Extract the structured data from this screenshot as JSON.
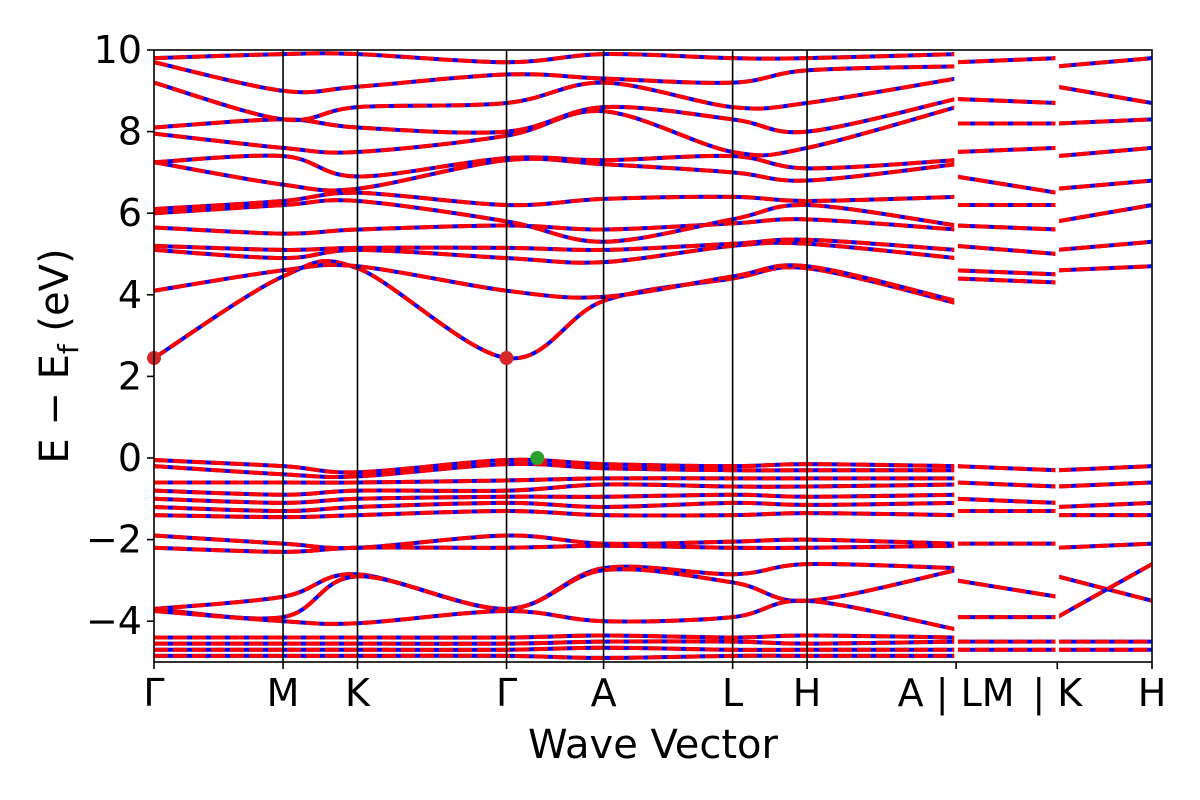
{
  "chart_data": {
    "type": "line",
    "xlabel": "Wave Vector",
    "ylabel_main": "E − E",
    "ylabel_sub": "f",
    "ylabel_unit": " (eV)",
    "ylim": [
      -5,
      10
    ],
    "yticks": [
      10,
      8,
      6,
      4,
      2,
      0,
      -2,
      -4
    ],
    "ytick_labels": [
      "10",
      "8",
      "6",
      "4",
      "2",
      "0",
      "−2",
      "−4"
    ],
    "kpoint_labels": [
      "Γ",
      "M",
      "K",
      "Γ",
      "A",
      "L",
      "H",
      "A | LM",
      "| K",
      "H"
    ],
    "kpoint_positions": [
      0.0,
      1.0,
      1.577,
      2.732,
      3.484,
      4.484,
      5.061,
      6.216,
      7.0,
      7.734
    ],
    "path_breaks": [
      6.216,
      7.0
    ],
    "xlim": [
      0.0,
      7.734
    ],
    "series_colors": {
      "spin_up": "#ff0000",
      "spin_down": "#0000ff"
    },
    "marker_colors": {
      "cbm": "#d62728",
      "vbm": "#2ca02c"
    },
    "cbm_points": [
      {
        "k": 0.0,
        "E": 2.45
      },
      {
        "k": 2.732,
        "E": 2.45
      }
    ],
    "vbm_points": [
      {
        "k": 2.97,
        "E": 0.0
      }
    ],
    "bands": [
      {
        "k": [
          0,
          1,
          1.577,
          2.732,
          3.484,
          4.484,
          5.061,
          6.216
        ],
        "E": [
          2.45,
          4.45,
          4.65,
          2.45,
          3.85,
          4.4,
          4.65,
          3.8
        ]
      },
      {
        "k": [
          0,
          1,
          1.577,
          2.732,
          3.484,
          4.484,
          5.061,
          6.216
        ],
        "E": [
          4.1,
          4.6,
          4.7,
          4.1,
          3.95,
          4.45,
          4.7,
          3.85
        ]
      },
      {
        "k": [
          0,
          1,
          1.577,
          2.732,
          3.484,
          4.484,
          5.061,
          6.216
        ],
        "E": [
          5.1,
          4.9,
          5.1,
          4.9,
          4.8,
          5.2,
          5.25,
          4.9
        ]
      },
      {
        "k": [
          0,
          1,
          1.577,
          2.732,
          3.484,
          4.484,
          5.061,
          6.216
        ],
        "E": [
          5.2,
          5.1,
          5.15,
          5.15,
          5.1,
          5.25,
          5.35,
          5.1
        ]
      },
      {
        "k": [
          0,
          1,
          1.577,
          2.732,
          3.484,
          4.484,
          5.061,
          6.216
        ],
        "E": [
          5.65,
          5.5,
          5.6,
          5.7,
          5.6,
          5.75,
          5.85,
          5.6
        ]
      },
      {
        "k": [
          0,
          1,
          1.577,
          2.732,
          3.484,
          4.484,
          5.061,
          6.216
        ],
        "E": [
          6.0,
          6.2,
          6.3,
          5.8,
          5.3,
          5.85,
          6.2,
          5.7
        ]
      },
      {
        "k": [
          0,
          1,
          1.577,
          2.732,
          3.484,
          4.484,
          5.061,
          6.216
        ],
        "E": [
          6.1,
          6.3,
          6.5,
          6.2,
          6.35,
          6.4,
          6.3,
          6.4
        ]
      },
      {
        "k": [
          0,
          1,
          1.577,
          2.732,
          3.484,
          4.484,
          5.061,
          6.216
        ],
        "E": [
          7.25,
          6.7,
          6.6,
          7.3,
          7.2,
          7.0,
          6.8,
          7.2
        ]
      },
      {
        "k": [
          0,
          1,
          1.577,
          2.732,
          3.484,
          4.484,
          5.061,
          6.216
        ],
        "E": [
          7.25,
          7.4,
          6.9,
          7.35,
          7.3,
          7.4,
          7.1,
          7.3
        ]
      },
      {
        "k": [
          0,
          1,
          1.577,
          2.732,
          3.484,
          4.484,
          5.061,
          6.216
        ],
        "E": [
          7.95,
          7.6,
          7.5,
          7.9,
          8.5,
          7.5,
          7.6,
          8.6
        ]
      },
      {
        "k": [
          0,
          1,
          1.577,
          2.732,
          3.484,
          4.484,
          5.061,
          6.216
        ],
        "E": [
          8.1,
          8.3,
          8.1,
          8.0,
          8.6,
          8.3,
          8.0,
          8.8
        ]
      },
      {
        "k": [
          0,
          1,
          1.577,
          2.732,
          3.484,
          4.484,
          5.061,
          6.216
        ],
        "E": [
          9.2,
          8.3,
          8.6,
          8.7,
          9.2,
          8.6,
          8.7,
          9.3
        ]
      },
      {
        "k": [
          0,
          1,
          1.577,
          2.732,
          3.484,
          4.484,
          5.061,
          6.216
        ],
        "E": [
          9.7,
          9.0,
          9.1,
          9.4,
          9.3,
          9.2,
          9.5,
          9.6
        ]
      },
      {
        "k": [
          0,
          1,
          1.577,
          2.732,
          3.484,
          4.484,
          5.061,
          6.216
        ],
        "E": [
          9.8,
          9.9,
          9.9,
          9.7,
          9.9,
          9.8,
          9.8,
          9.9
        ]
      },
      {
        "k": [
          0,
          1,
          1.577,
          2.732,
          3.484,
          4.484,
          5.061,
          6.216
        ],
        "E": [
          -0.05,
          -0.2,
          -0.35,
          -0.05,
          -0.15,
          -0.2,
          -0.15,
          -0.2
        ]
      },
      {
        "k": [
          0,
          1,
          1.577,
          2.732,
          3.484,
          4.484,
          5.061,
          6.216
        ],
        "E": [
          -0.2,
          -0.4,
          -0.45,
          -0.15,
          -0.25,
          -0.3,
          -0.3,
          -0.3
        ]
      },
      {
        "k": [
          0,
          1,
          1.577,
          2.732,
          3.484,
          4.484,
          5.061,
          6.216
        ],
        "E": [
          -0.6,
          -0.6,
          -0.6,
          -0.55,
          -0.5,
          -0.5,
          -0.5,
          -0.5
        ]
      },
      {
        "k": [
          0,
          1,
          1.577,
          2.732,
          3.484,
          4.484,
          5.061,
          6.216
        ],
        "E": [
          -0.8,
          -0.9,
          -0.8,
          -0.8,
          -0.65,
          -0.7,
          -0.7,
          -0.65
        ]
      },
      {
        "k": [
          0,
          1,
          1.577,
          2.732,
          3.484,
          4.484,
          5.061,
          6.216
        ],
        "E": [
          -1.0,
          -1.1,
          -1.0,
          -0.95,
          -0.95,
          -0.9,
          -0.95,
          -0.9
        ]
      },
      {
        "k": [
          0,
          1,
          1.577,
          2.732,
          3.484,
          4.484,
          5.061,
          6.216
        ],
        "E": [
          -1.2,
          -1.3,
          -1.2,
          -1.1,
          -1.2,
          -1.1,
          -1.15,
          -1.1
        ]
      },
      {
        "k": [
          0,
          1,
          1.577,
          2.732,
          3.484,
          4.484,
          5.061,
          6.216
        ],
        "E": [
          -1.4,
          -1.45,
          -1.4,
          -1.3,
          -1.4,
          -1.4,
          -1.35,
          -1.4
        ]
      },
      {
        "k": [
          0,
          1,
          1.577,
          2.732,
          3.484,
          4.484,
          5.061,
          6.216
        ],
        "E": [
          -1.9,
          -2.1,
          -2.2,
          -1.9,
          -2.1,
          -2.05,
          -2.0,
          -2.1
        ]
      },
      {
        "k": [
          0,
          1,
          1.577,
          2.732,
          3.484,
          4.484,
          5.061,
          6.216
        ],
        "E": [
          -2.2,
          -2.3,
          -2.2,
          -2.2,
          -2.15,
          -2.2,
          -2.2,
          -2.15
        ]
      },
      {
        "k": [
          0,
          1,
          1.577,
          2.732,
          3.484,
          4.484,
          5.061,
          6.216
        ],
        "E": [
          -3.7,
          -3.4,
          -2.85,
          -3.7,
          -2.7,
          -2.85,
          -2.6,
          -2.7
        ]
      },
      {
        "k": [
          0,
          1,
          1.577,
          2.732,
          3.484,
          4.484,
          5.061,
          6.216
        ],
        "E": [
          -3.7,
          -3.9,
          -2.9,
          -3.7,
          -2.75,
          -3.05,
          -3.5,
          -2.75
        ]
      },
      {
        "k": [
          0,
          1,
          1.577,
          2.732,
          3.484,
          4.484,
          5.061,
          6.216
        ],
        "E": [
          -3.75,
          -4.0,
          -4.05,
          -3.75,
          -4.0,
          -3.9,
          -3.5,
          -4.2
        ]
      },
      {
        "k": [
          0,
          1,
          1.577,
          2.732,
          3.484,
          4.484,
          5.061,
          6.216
        ],
        "E": [
          -4.4,
          -4.4,
          -4.4,
          -4.4,
          -4.35,
          -4.4,
          -4.35,
          -4.4
        ]
      },
      {
        "k": [
          0,
          1,
          1.577,
          2.732,
          3.484,
          4.484,
          5.061,
          6.216
        ],
        "E": [
          -4.55,
          -4.55,
          -4.55,
          -4.55,
          -4.5,
          -4.5,
          -4.55,
          -4.5
        ]
      },
      {
        "k": [
          0,
          1,
          1.577,
          2.732,
          3.484,
          4.484,
          5.061,
          6.216
        ],
        "E": [
          -4.7,
          -4.7,
          -4.7,
          -4.7,
          -4.65,
          -4.7,
          -4.7,
          -4.7
        ]
      },
      {
        "k": [
          0,
          1,
          1.577,
          2.732,
          3.484,
          4.484,
          5.061,
          6.216
        ],
        "E": [
          -4.85,
          -4.85,
          -4.85,
          -4.85,
          -4.9,
          -4.85,
          -4.85,
          -4.85
        ]
      },
      {
        "k": [
          6.216,
          7.0
        ],
        "E": [
          4.4,
          4.3
        ]
      },
      {
        "k": [
          6.216,
          7.0
        ],
        "E": [
          4.6,
          4.5
        ]
      },
      {
        "k": [
          6.216,
          7.0
        ],
        "E": [
          5.2,
          5.0
        ]
      },
      {
        "k": [
          6.216,
          7.0
        ],
        "E": [
          5.7,
          5.6
        ]
      },
      {
        "k": [
          6.216,
          7.0
        ],
        "E": [
          6.2,
          6.2
        ]
      },
      {
        "k": [
          6.216,
          7.0
        ],
        "E": [
          6.9,
          6.5
        ]
      },
      {
        "k": [
          6.216,
          7.0
        ],
        "E": [
          7.5,
          7.6
        ]
      },
      {
        "k": [
          6.216,
          7.0
        ],
        "E": [
          8.2,
          8.2
        ]
      },
      {
        "k": [
          6.216,
          7.0
        ],
        "E": [
          8.8,
          8.7
        ]
      },
      {
        "k": [
          6.216,
          7.0
        ],
        "E": [
          9.7,
          9.8
        ]
      },
      {
        "k": [
          6.216,
          7.0
        ],
        "E": [
          -0.2,
          -0.3
        ]
      },
      {
        "k": [
          6.216,
          7.0
        ],
        "E": [
          -0.6,
          -0.7
        ]
      },
      {
        "k": [
          6.216,
          7.0
        ],
        "E": [
          -1.0,
          -1.1
        ]
      },
      {
        "k": [
          6.216,
          7.0
        ],
        "E": [
          -1.3,
          -1.3
        ]
      },
      {
        "k": [
          6.216,
          7.0
        ],
        "E": [
          -2.1,
          -2.1
        ]
      },
      {
        "k": [
          6.216,
          7.0
        ],
        "E": [
          -3.0,
          -3.4
        ]
      },
      {
        "k": [
          6.216,
          7.0
        ],
        "E": [
          -3.9,
          -3.9
        ]
      },
      {
        "k": [
          6.216,
          7.0
        ],
        "E": [
          -4.5,
          -4.5
        ]
      },
      {
        "k": [
          6.216,
          7.0
        ],
        "E": [
          -4.7,
          -4.7
        ]
      },
      {
        "k": [
          7.0,
          7.734
        ],
        "E": [
          4.6,
          4.7
        ]
      },
      {
        "k": [
          7.0,
          7.734
        ],
        "E": [
          5.1,
          5.3
        ]
      },
      {
        "k": [
          7.0,
          7.734
        ],
        "E": [
          5.8,
          6.2
        ]
      },
      {
        "k": [
          7.0,
          7.734
        ],
        "E": [
          6.6,
          6.8
        ]
      },
      {
        "k": [
          7.0,
          7.734
        ],
        "E": [
          7.4,
          7.6
        ]
      },
      {
        "k": [
          7.0,
          7.734
        ],
        "E": [
          8.2,
          8.3
        ]
      },
      {
        "k": [
          7.0,
          7.734
        ],
        "E": [
          9.1,
          8.7
        ]
      },
      {
        "k": [
          7.0,
          7.734
        ],
        "E": [
          9.6,
          9.8
        ]
      },
      {
        "k": [
          7.0,
          7.734
        ],
        "E": [
          -0.3,
          -0.2
        ]
      },
      {
        "k": [
          7.0,
          7.734
        ],
        "E": [
          -0.7,
          -0.6
        ]
      },
      {
        "k": [
          7.0,
          7.734
        ],
        "E": [
          -1.2,
          -1.1
        ]
      },
      {
        "k": [
          7.0,
          7.734
        ],
        "E": [
          -1.4,
          -1.4
        ]
      },
      {
        "k": [
          7.0,
          7.734
        ],
        "E": [
          -2.2,
          -2.1
        ]
      },
      {
        "k": [
          7.0,
          7.734
        ],
        "E": [
          -2.9,
          -3.5
        ]
      },
      {
        "k": [
          7.0,
          7.734
        ],
        "E": [
          -3.9,
          -2.6
        ]
      },
      {
        "k": [
          7.0,
          7.734
        ],
        "E": [
          -4.5,
          -4.5
        ]
      },
      {
        "k": [
          7.0,
          7.734
        ],
        "E": [
          -4.7,
          -4.7
        ]
      }
    ]
  }
}
